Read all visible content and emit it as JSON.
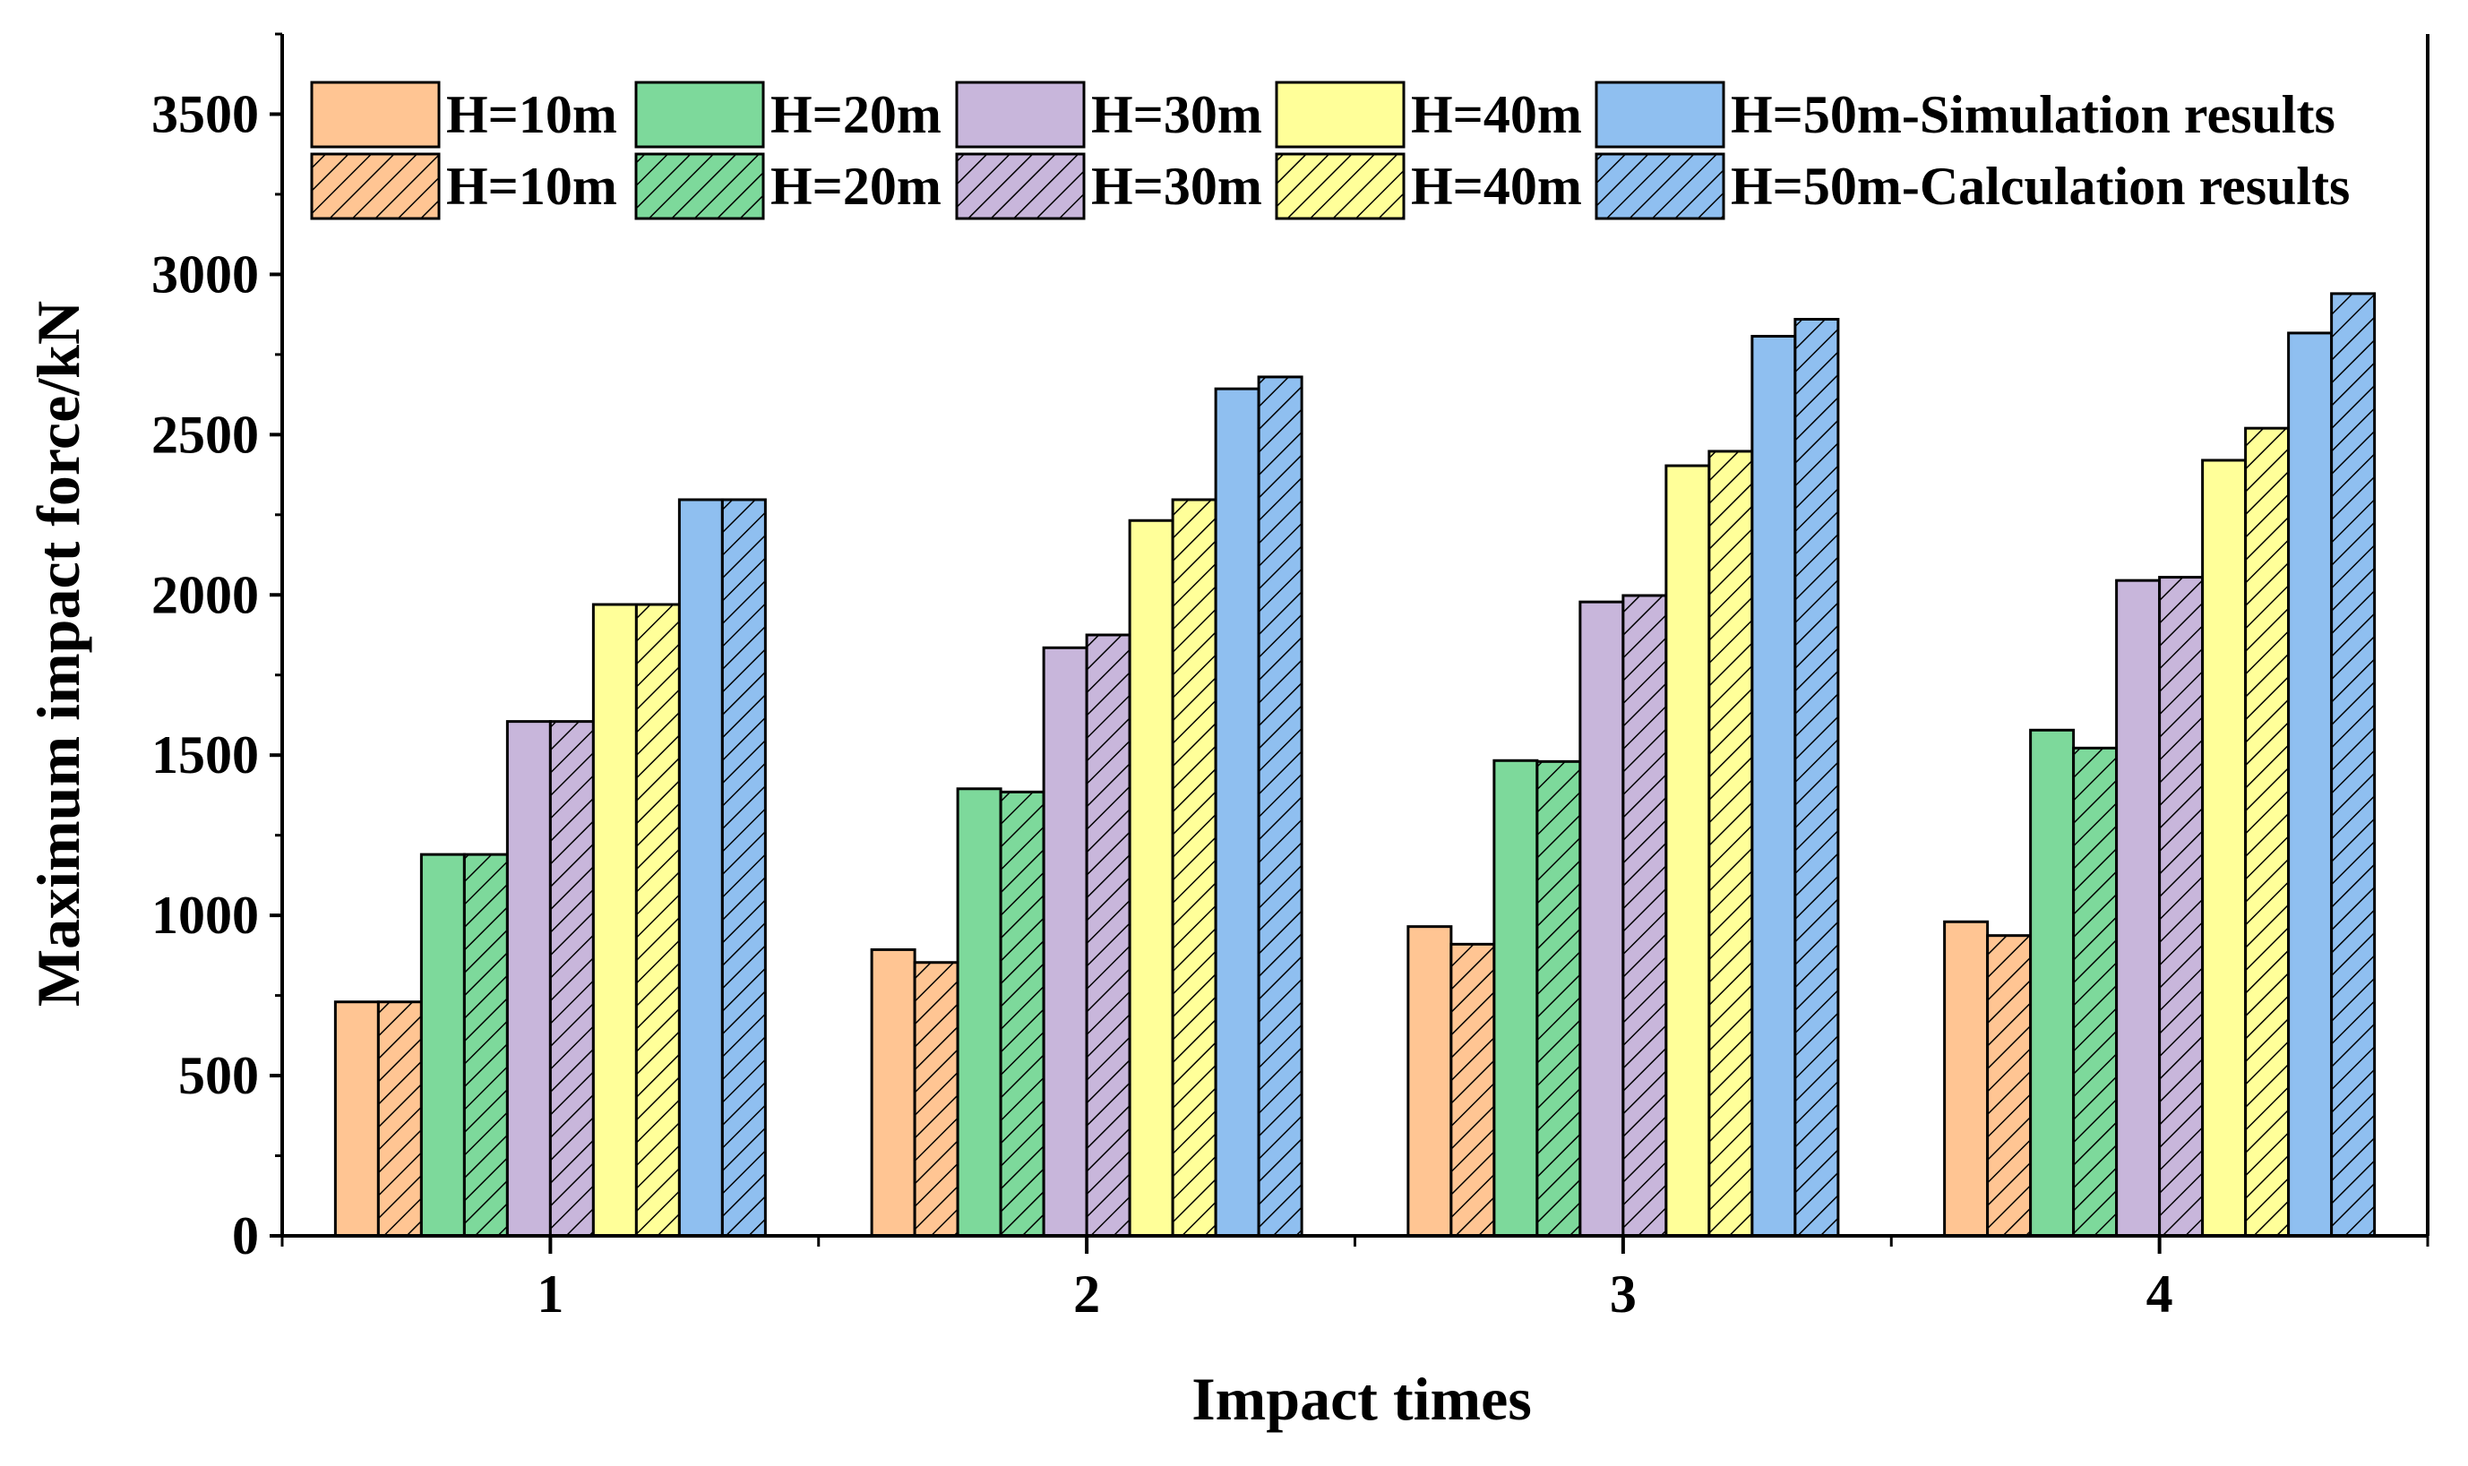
{
  "chart_data": {
    "type": "bar",
    "title": "",
    "xlabel": "Impact times",
    "ylabel": "Maximum impact force/kN",
    "categories": [
      "1",
      "2",
      "3",
      "4"
    ],
    "ylim": [
      0,
      3750
    ],
    "yticks": [
      0,
      500,
      1000,
      1500,
      2000,
      2500,
      3000,
      3500
    ],
    "ytick_labels": [
      "0",
      "500",
      "1000",
      "1500",
      "2000",
      "2500",
      "3000",
      "3500"
    ],
    "legend_position": "top",
    "series": [
      {
        "name": "H=10m",
        "legend_label": "H=10m",
        "group": "Simulation results",
        "pattern": "solid",
        "color": "#FFC593",
        "values": [
          730,
          893,
          965,
          980
        ]
      },
      {
        "name": "H=10m",
        "legend_label": "H=10m",
        "group": "Calculation results",
        "pattern": "hatch",
        "color": "#FFC593",
        "values": [
          730,
          853,
          910,
          937
        ]
      },
      {
        "name": "H=20m",
        "legend_label": "H=20m",
        "group": "Simulation results",
        "pattern": "solid",
        "color": "#7DD99B",
        "values": [
          1190,
          1395,
          1483,
          1578
        ]
      },
      {
        "name": "H=20m",
        "legend_label": "H=20m",
        "group": "Calculation results",
        "pattern": "hatch",
        "color": "#7DD99B",
        "values": [
          1190,
          1385,
          1480,
          1522
        ]
      },
      {
        "name": "H=30m",
        "legend_label": "H=30m",
        "group": "Simulation results",
        "pattern": "solid",
        "color": "#C8B6DB",
        "values": [
          1605,
          1835,
          1978,
          2045
        ]
      },
      {
        "name": "H=30m",
        "legend_label": "H=30m",
        "group": "Calculation results",
        "pattern": "hatch",
        "color": "#C8B6DB",
        "values": [
          1605,
          1875,
          1998,
          2055
        ]
      },
      {
        "name": "H=40m",
        "legend_label": "H=40m",
        "group": "Simulation results",
        "pattern": "solid",
        "color": "#FFFF99",
        "values": [
          1970,
          2232,
          2403,
          2420
        ]
      },
      {
        "name": "H=40m",
        "legend_label": "H=40m",
        "group": "Calculation results",
        "pattern": "hatch",
        "color": "#FFFF99",
        "values": [
          1970,
          2297,
          2448,
          2520
        ]
      },
      {
        "name": "H=50m",
        "legend_label": "H=50m-Simulation results",
        "group": "Simulation results",
        "pattern": "solid",
        "color": "#8FBFF0",
        "values": [
          2297,
          2643,
          2807,
          2817
        ]
      },
      {
        "name": "H=50m",
        "legend_label": "H=50m-Calculation results",
        "group": "Calculation results",
        "pattern": "hatch",
        "color": "#8FBFF0",
        "values": [
          2297,
          2680,
          2860,
          2940
        ]
      }
    ]
  }
}
